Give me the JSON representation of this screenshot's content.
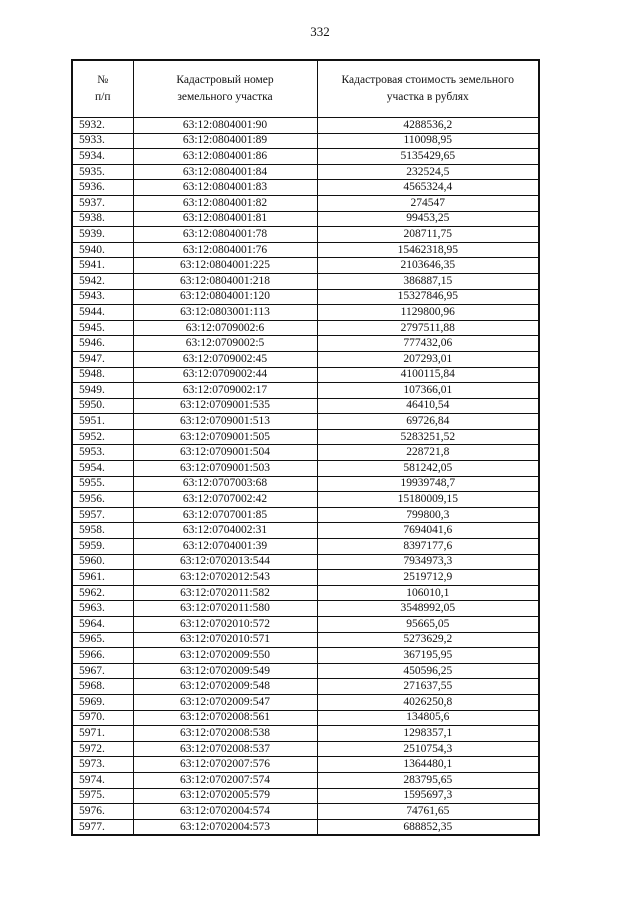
{
  "page_number": "332",
  "table": {
    "headers": [
      "№\nп/п",
      "Кадастровый номер\nземельного участка",
      "Кадастровая стоимость земельного\nучастка в рублях"
    ],
    "rows": [
      [
        "5932.",
        "63:12:0804001:90",
        "4288536,2"
      ],
      [
        "5933.",
        "63:12:0804001:89",
        "110098,95"
      ],
      [
        "5934.",
        "63:12:0804001:86",
        "5135429,65"
      ],
      [
        "5935.",
        "63:12:0804001:84",
        "232524,5"
      ],
      [
        "5936.",
        "63:12:0804001:83",
        "4565324,4"
      ],
      [
        "5937.",
        "63:12:0804001:82",
        "274547"
      ],
      [
        "5938.",
        "63:12:0804001:81",
        "99453,25"
      ],
      [
        "5939.",
        "63:12:0804001:78",
        "208711,75"
      ],
      [
        "5940.",
        "63:12:0804001:76",
        "15462318,95"
      ],
      [
        "5941.",
        "63:12:0804001:225",
        "2103646,35"
      ],
      [
        "5942.",
        "63:12:0804001:218",
        "386887,15"
      ],
      [
        "5943.",
        "63:12:0804001:120",
        "15327846,95"
      ],
      [
        "5944.",
        "63:12:0803001:113",
        "1129800,96"
      ],
      [
        "5945.",
        "63:12:0709002:6",
        "2797511,88"
      ],
      [
        "5946.",
        "63:12:0709002:5",
        "777432,06"
      ],
      [
        "5947.",
        "63:12:0709002:45",
        "207293,01"
      ],
      [
        "5948.",
        "63:12:0709002:44",
        "4100115,84"
      ],
      [
        "5949.",
        "63:12:0709002:17",
        "107366,01"
      ],
      [
        "5950.",
        "63:12:0709001:535",
        "46410,54"
      ],
      [
        "5951.",
        "63:12:0709001:513",
        "69726,84"
      ],
      [
        "5952.",
        "63:12:0709001:505",
        "5283251,52"
      ],
      [
        "5953.",
        "63:12:0709001:504",
        "228721,8"
      ],
      [
        "5954.",
        "63:12:0709001:503",
        "581242,05"
      ],
      [
        "5955.",
        "63:12:0707003:68",
        "19939748,7"
      ],
      [
        "5956.",
        "63:12:0707002:42",
        "15180009,15"
      ],
      [
        "5957.",
        "63:12:0707001:85",
        "799800,3"
      ],
      [
        "5958.",
        "63:12:0704002:31",
        "7694041,6"
      ],
      [
        "5959.",
        "63:12:0704001:39",
        "8397177,6"
      ],
      [
        "5960.",
        "63:12:0702013:544",
        "7934973,3"
      ],
      [
        "5961.",
        "63:12:0702012:543",
        "2519712,9"
      ],
      [
        "5962.",
        "63:12:0702011:582",
        "106010,1"
      ],
      [
        "5963.",
        "63:12:0702011:580",
        "3548992,05"
      ],
      [
        "5964.",
        "63:12:0702010:572",
        "95665,05"
      ],
      [
        "5965.",
        "63:12:0702010:571",
        "5273629,2"
      ],
      [
        "5966.",
        "63:12:0702009:550",
        "367195,95"
      ],
      [
        "5967.",
        "63:12:0702009:549",
        "450596,25"
      ],
      [
        "5968.",
        "63:12:0702009:548",
        "271637,55"
      ],
      [
        "5969.",
        "63:12:0702009:547",
        "4026250,8"
      ],
      [
        "5970.",
        "63:12:0702008:561",
        "134805,6"
      ],
      [
        "5971.",
        "63:12:0702008:538",
        "1298357,1"
      ],
      [
        "5972.",
        "63:12:0702008:537",
        "2510754,3"
      ],
      [
        "5973.",
        "63:12:0702007:576",
        "1364480,1"
      ],
      [
        "5974.",
        "63:12:0702007:574",
        "283795,65"
      ],
      [
        "5975.",
        "63:12:0702005:579",
        "1595697,3"
      ],
      [
        "5976.",
        "63:12:0702004:574",
        "74761,65"
      ],
      [
        "5977.",
        "63:12:0702004:573",
        "688852,35"
      ]
    ]
  }
}
